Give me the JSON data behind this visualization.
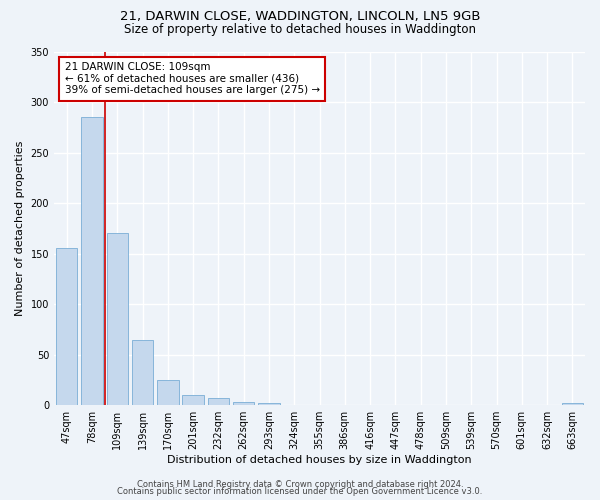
{
  "title": "21, DARWIN CLOSE, WADDINGTON, LINCOLN, LN5 9GB",
  "subtitle": "Size of property relative to detached houses in Waddington",
  "xlabel": "Distribution of detached houses by size in Waddington",
  "ylabel": "Number of detached properties",
  "bar_labels": [
    "47sqm",
    "78sqm",
    "109sqm",
    "139sqm",
    "170sqm",
    "201sqm",
    "232sqm",
    "262sqm",
    "293sqm",
    "324sqm",
    "355sqm",
    "386sqm",
    "416sqm",
    "447sqm",
    "478sqm",
    "509sqm",
    "539sqm",
    "570sqm",
    "601sqm",
    "632sqm",
    "663sqm"
  ],
  "bar_values": [
    156,
    285,
    170,
    65,
    25,
    10,
    7,
    3,
    2,
    0,
    0,
    0,
    0,
    0,
    0,
    0,
    0,
    0,
    0,
    0,
    2
  ],
  "bar_color": "#c5d8ed",
  "bar_edge_color": "#7aaed6",
  "vline_color": "#cc0000",
  "vline_index": 2,
  "ylim": [
    0,
    350
  ],
  "yticks": [
    0,
    50,
    100,
    150,
    200,
    250,
    300,
    350
  ],
  "annotation_title": "21 DARWIN CLOSE: 109sqm",
  "annotation_line1": "← 61% of detached houses are smaller (436)",
  "annotation_line2": "39% of semi-detached houses are larger (275) →",
  "annotation_box_color": "#ffffff",
  "annotation_box_edge_color": "#cc0000",
  "footer1": "Contains HM Land Registry data © Crown copyright and database right 2024.",
  "footer2": "Contains public sector information licensed under the Open Government Licence v3.0.",
  "background_color": "#eef3f9",
  "grid_color": "#ffffff",
  "title_fontsize": 9.5,
  "subtitle_fontsize": 8.5,
  "xlabel_fontsize": 8,
  "ylabel_fontsize": 8,
  "tick_fontsize": 7,
  "annotation_fontsize": 7.5,
  "footer_fontsize": 6
}
